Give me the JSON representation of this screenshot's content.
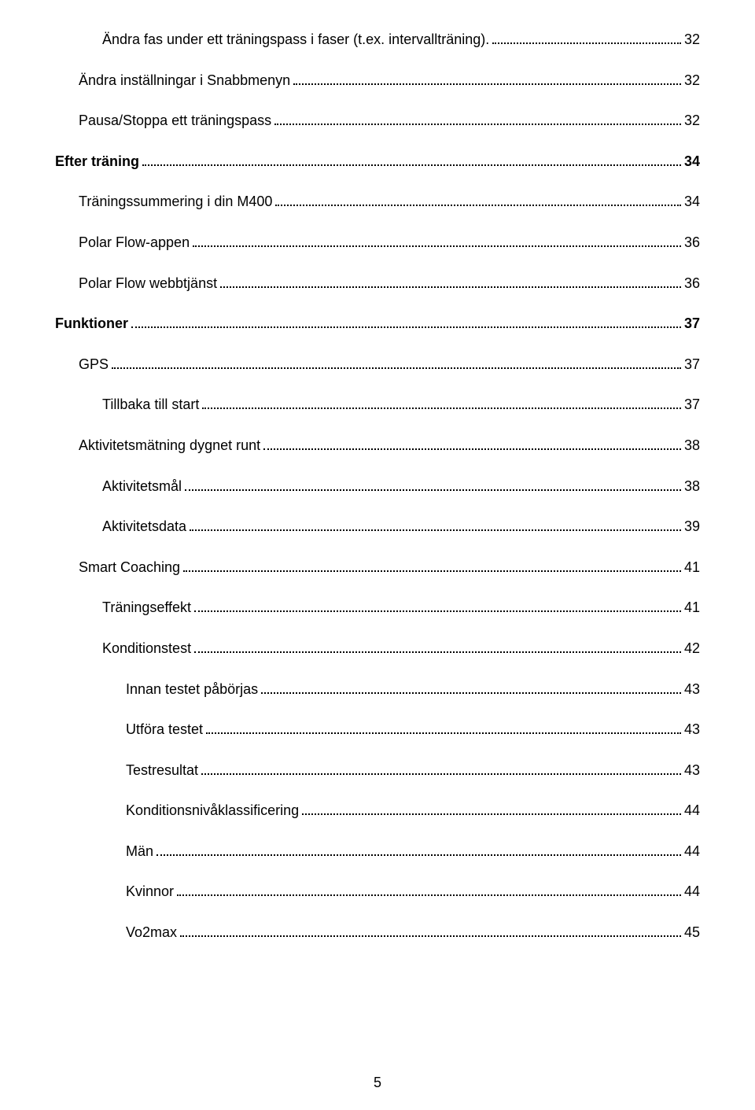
{
  "toc": [
    {
      "label": "Ändra fas under ett träningspass i faser (t.ex. intervallträning).",
      "page": "32",
      "indent": 2,
      "bold": false
    },
    {
      "label": "Ändra inställningar i Snabbmenyn",
      "page": "32",
      "indent": 1,
      "bold": false
    },
    {
      "label": "Pausa/Stoppa ett träningspass",
      "page": "32",
      "indent": 1,
      "bold": false
    },
    {
      "label": "Efter träning",
      "page": "34",
      "indent": 0,
      "bold": true
    },
    {
      "label": "Träningssummering i din M400",
      "page": "34",
      "indent": 1,
      "bold": false
    },
    {
      "label": "Polar Flow-appen",
      "page": "36",
      "indent": 1,
      "bold": false
    },
    {
      "label": "Polar Flow webbtjänst",
      "page": "36",
      "indent": 1,
      "bold": false
    },
    {
      "label": "Funktioner",
      "page": "37",
      "indent": 0,
      "bold": true
    },
    {
      "label": "GPS",
      "page": "37",
      "indent": 1,
      "bold": false
    },
    {
      "label": "Tillbaka till start",
      "page": "37",
      "indent": 2,
      "bold": false
    },
    {
      "label": "Aktivitetsmätning dygnet runt",
      "page": "38",
      "indent": 1,
      "bold": false
    },
    {
      "label": "Aktivitetsmål",
      "page": "38",
      "indent": 2,
      "bold": false
    },
    {
      "label": "Aktivitetsdata",
      "page": "39",
      "indent": 2,
      "bold": false
    },
    {
      "label": "Smart Coaching",
      "page": "41",
      "indent": 1,
      "bold": false
    },
    {
      "label": "Träningseffekt",
      "page": "41",
      "indent": 2,
      "bold": false
    },
    {
      "label": "Konditionstest",
      "page": "42",
      "indent": 2,
      "bold": false
    },
    {
      "label": "Innan testet påbörjas",
      "page": "43",
      "indent": 3,
      "bold": false
    },
    {
      "label": "Utföra testet",
      "page": "43",
      "indent": 3,
      "bold": false
    },
    {
      "label": "Testresultat",
      "page": "43",
      "indent": 3,
      "bold": false
    },
    {
      "label": "Konditionsnivåklassificering",
      "page": "44",
      "indent": 3,
      "bold": false
    },
    {
      "label": "Män",
      "page": "44",
      "indent": 3,
      "bold": false
    },
    {
      "label": "Kvinnor",
      "page": "44",
      "indent": 3,
      "bold": false
    },
    {
      "label": "Vo2max",
      "page": "45",
      "indent": 3,
      "bold": false
    }
  ],
  "pageNumber": "5"
}
